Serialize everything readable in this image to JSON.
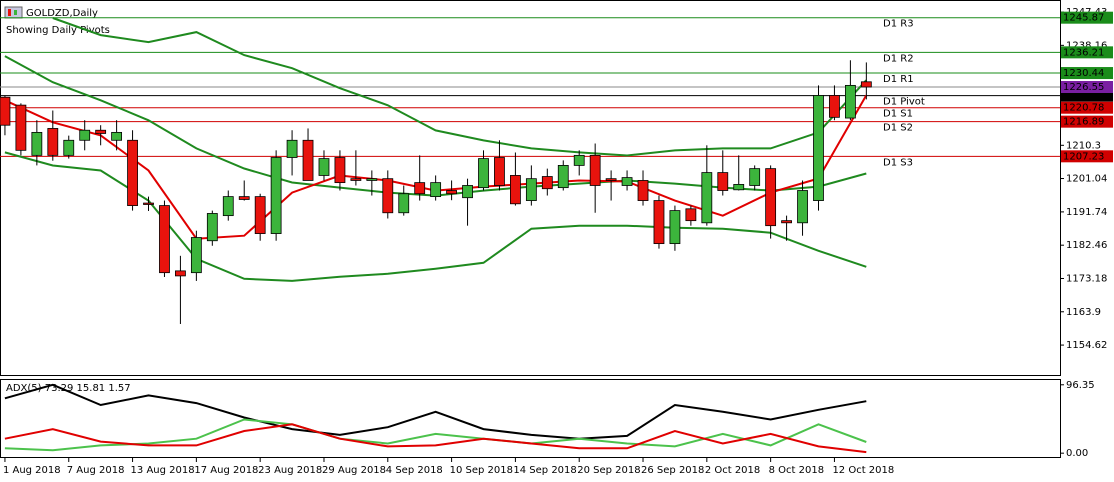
{
  "chart_data": {
    "type": "candlestick",
    "symbol": "GOLDZD,Daily",
    "subtitle": "Showing Daily Pivots",
    "xlim": [
      -0.31,
      66.14
    ],
    "xticks": [
      {
        "value": 0,
        "label": "1 Aug 2018"
      },
      {
        "value": 4,
        "label": "7 Aug 2018"
      },
      {
        "value": 8,
        "label": "13 Aug 2018"
      },
      {
        "value": 12,
        "label": "17 Aug 2018"
      },
      {
        "value": 16,
        "label": "23 Aug 2018"
      },
      {
        "value": 20,
        "label": "29 Aug 2018"
      },
      {
        "value": 24,
        "label": "4 Sep 2018"
      },
      {
        "value": 28,
        "label": "10 Sep 2018"
      },
      {
        "value": 32,
        "label": "14 Sep 2018"
      },
      {
        "value": 36,
        "label": "20 Sep 2018"
      },
      {
        "value": 40,
        "label": "26 Sep 2018"
      },
      {
        "value": 44,
        "label": "2 Oct 2018"
      },
      {
        "value": 48,
        "label": "8 Oct 2018"
      },
      {
        "value": 52,
        "label": "12 Oct 2018"
      }
    ],
    "ylim": [
      1146,
      1250.8
    ],
    "yticks": [
      1247.43,
      1238.16,
      1210.3,
      1201.04,
      1191.74,
      1182.46,
      1173.18,
      1163.9,
      1154.62
    ],
    "up_color": "#3cb43c",
    "down_color": "#e8130d",
    "candles": {
      "open": [
        1223.7,
        1221.5,
        1207.5,
        1215.0,
        1207.5,
        1211.7,
        1214.5,
        1211.7,
        1211.7,
        1194.2,
        1193.5,
        1175.3,
        1174.8,
        1183.7,
        1190.7,
        1196.0,
        1196.0,
        1185.7,
        1206.9,
        1211.7,
        1201.9,
        1206.9,
        1201.0,
        1200.5,
        1201.0,
        1191.5,
        1199.9,
        1196.0,
        1197.7,
        1195.7,
        1198.5,
        1206.9,
        1201.9,
        1194.9,
        1201.6,
        1198.5,
        1204.7,
        1207.5,
        1201.0,
        1199.1,
        1200.5,
        1194.9,
        1182.9,
        1192.6,
        1188.7,
        1202.7,
        1197.9,
        1199.1,
        1203.8,
        1189.3,
        1188.7,
        1194.9,
        1224.2,
        1217.9,
        1228.0
      ],
      "high": [
        1224.2,
        1222.0,
        1217.3,
        1220.0,
        1213.0,
        1217.3,
        1215.9,
        1217.3,
        1214.5,
        1196.0,
        1194.9,
        1179.5,
        1186.5,
        1192.1,
        1197.7,
        1200.5,
        1196.8,
        1208.9,
        1214.5,
        1215.0,
        1208.9,
        1208.9,
        1208.9,
        1203.3,
        1203.3,
        1199.1,
        1207.5,
        1201.9,
        1200.5,
        1201.0,
        1208.9,
        1211.7,
        1208.3,
        1204.7,
        1203.8,
        1206.1,
        1208.9,
        1210.8,
        1203.3,
        1203.3,
        1203.3,
        1196.3,
        1193.5,
        1193.5,
        1210.3,
        1208.9,
        1207.5,
        1204.7,
        1204.7,
        1190.7,
        1200.5,
        1227.0,
        1227.0,
        1234.0,
        1233.4
      ],
      "low": [
        1213.1,
        1207.5,
        1204.7,
        1206.0,
        1206.6,
        1208.9,
        1210.3,
        1208.9,
        1192.1,
        1192.0,
        1173.6,
        1160.5,
        1172.5,
        1182.3,
        1189.3,
        1194.9,
        1183.7,
        1183.7,
        1201.9,
        1200.5,
        1200.5,
        1197.7,
        1199.1,
        1196.3,
        1189.9,
        1190.7,
        1194.9,
        1194.9,
        1195.0,
        1187.9,
        1197.7,
        1197.7,
        1193.5,
        1193.5,
        1196.3,
        1197.7,
        1201.9,
        1191.5,
        1194.9,
        1197.7,
        1193.5,
        1181.5,
        1180.9,
        1187.9,
        1187.9,
        1196.3,
        1197.7,
        1197.7,
        1184.3,
        1183.7,
        1185.1,
        1192.1,
        1217.3,
        1217.3,
        1223.1
      ],
      "close": [
        1215.9,
        1208.9,
        1213.9,
        1207.5,
        1211.7,
        1214.5,
        1213.6,
        1213.9,
        1193.5,
        1193.8,
        1174.8,
        1173.9,
        1184.6,
        1191.3,
        1196.0,
        1195.2,
        1185.7,
        1206.9,
        1211.7,
        1200.5,
        1206.6,
        1199.9,
        1200.5,
        1201.0,
        1191.5,
        1196.8,
        1196.8,
        1199.9,
        1196.8,
        1199.1,
        1206.6,
        1199.1,
        1194.0,
        1201.0,
        1198.2,
        1204.7,
        1207.5,
        1199.1,
        1200.5,
        1201.3,
        1194.9,
        1182.9,
        1192.1,
        1189.3,
        1202.7,
        1197.7,
        1199.4,
        1203.8,
        1187.9,
        1188.7,
        1197.7,
        1224.2,
        1218.1,
        1227.0,
        1226.55
      ]
    },
    "price_color": "#7a1fa2",
    "indicator_x": [
      0,
      3,
      6,
      9,
      12,
      15,
      18,
      21,
      24,
      27,
      30,
      33,
      36,
      39,
      42,
      45,
      48,
      51,
      54
    ],
    "indicators": [
      {
        "color": "#1f8a1f",
        "values": [
          null,
          1245.78,
          1241.03,
          1239.07,
          1241.86,
          1235.43,
          1231.8,
          1226.21,
          1221.45,
          1214.46,
          1211.66,
          1209.43,
          1208.31,
          1207.47,
          1208.87,
          1209.43,
          1209.43,
          1213.9,
          1228.44
        ]
      },
      {
        "color": "#1f8a1f",
        "values": [
          1235.15,
          1227.88,
          1222.85,
          1217.26,
          1209.43,
          1203.84,
          1199.92,
          1198.52,
          1197.13,
          1196.29,
          1197.68,
          1198.8,
          1199.64,
          1200.48,
          1199.64,
          1198.52,
          1197.68,
          1198.8,
          1202.44
        ]
      },
      {
        "color": "#1f8a1f",
        "values": [
          1208.31,
          1204.67,
          1203.28,
          1194.89,
          1178.67,
          1173.08,
          1172.52,
          1173.64,
          1174.48,
          1175.87,
          1177.55,
          1187.06,
          1187.9,
          1187.9,
          1187.34,
          1187.06,
          1185.94,
          1180.91,
          1176.43
        ]
      },
      {
        "color": "#e00000",
        "values": [
          1222.85,
          1216.7,
          1213.06,
          1203.28,
          1184.26,
          1185.1,
          1197.13,
          1201.88,
          1200.48,
          1197.68,
          1198.8,
          1199.64,
          1200.48,
          1200.2,
          1194.89,
          1190.69,
          1197.13,
          1201.04,
          1224.25
        ]
      }
    ],
    "pivots": [
      {
        "label": "D1 R3",
        "value": 1245.87,
        "color": "#1a8c1a"
      },
      {
        "label": "D1 R2",
        "value": 1236.21,
        "color": "#1a8c1a"
      },
      {
        "label": "D1 R1",
        "value": 1230.44,
        "color": "#1a8c1a"
      },
      {
        "label": "D1 Pivot",
        "value": 1224.15,
        "color": "#000000"
      },
      {
        "label": "D1 S1",
        "value": 1220.78,
        "color": "#d00000"
      },
      {
        "label": "D1 S2",
        "value": 1216.89,
        "color": "#d00000"
      },
      {
        "label": "D1 S3",
        "value": 1207.23,
        "color": "#d00000"
      }
    ],
    "adx": {
      "type": "line",
      "title": "ADX(5) 73.29 15.81 1.57",
      "ylim": [
        -6.8,
        104.5
      ],
      "yticks": [
        96.35,
        {
          "value": 0,
          "label": "0.00"
        }
      ],
      "x": [
        0,
        3,
        6,
        9,
        12,
        15,
        18,
        21,
        24,
        27,
        30,
        33,
        36,
        39,
        42,
        45,
        48,
        51,
        54
      ],
      "series": [
        {
          "color": "#000000",
          "values": [
            77.3,
            96.3,
            67.8,
            81.4,
            70.6,
            50.2,
            33.9,
            25.8,
            36.6,
            58.3,
            33.9,
            25.8,
            20.4,
            24.4,
            67.8,
            58.3,
            47.5,
            61.1,
            73.29
          ]
        },
        {
          "color": "#4cc24c",
          "values": [
            6.8,
            4.1,
            10.9,
            13.6,
            20.4,
            47.5,
            40.7,
            20.4,
            13.6,
            27.1,
            20.4,
            13.6,
            20.4,
            13.6,
            9.5,
            27.1,
            10.9,
            40.7,
            15.81
          ]
        },
        {
          "color": "#e00000",
          "values": [
            20.4,
            33.9,
            16.3,
            10.9,
            10.9,
            31.2,
            40.7,
            20.4,
            9.5,
            10.9,
            20.4,
            13.6,
            6.8,
            6.8,
            31.2,
            13.6,
            27.1,
            9.5,
            1.57
          ]
        }
      ]
    }
  }
}
